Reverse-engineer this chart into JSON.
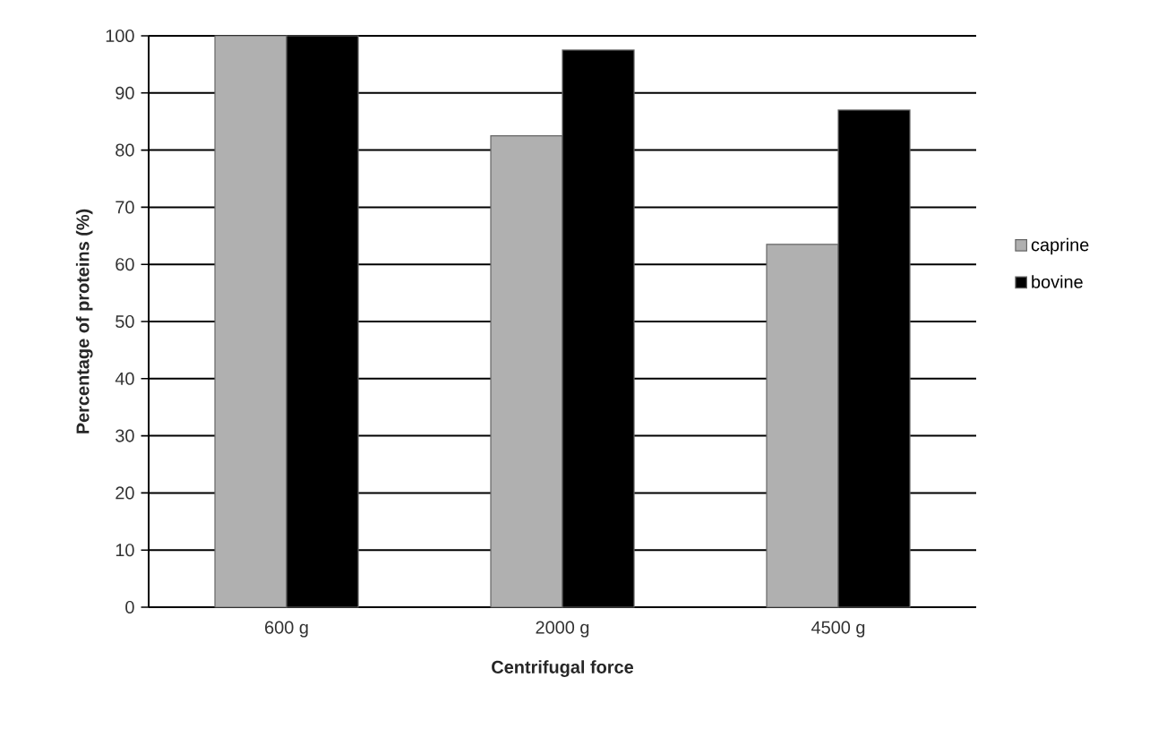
{
  "chart_data": {
    "type": "bar",
    "xlabel": "Centrifugal force",
    "ylabel": "Percentage of proteins (%)",
    "categories": [
      "600 g",
      "2000 g",
      "4500 g"
    ],
    "series": [
      {
        "name": "caprine",
        "color": "#b0b0b0",
        "values": [
          100,
          82.5,
          63.5
        ]
      },
      {
        "name": "bovine",
        "color": "#000000",
        "values": [
          100,
          97.5,
          87
        ]
      }
    ],
    "ylim": [
      0,
      100
    ],
    "yticks": [
      0,
      10,
      20,
      30,
      40,
      50,
      60,
      70,
      80,
      90,
      100
    ],
    "grid": "y",
    "legend": "right"
  }
}
